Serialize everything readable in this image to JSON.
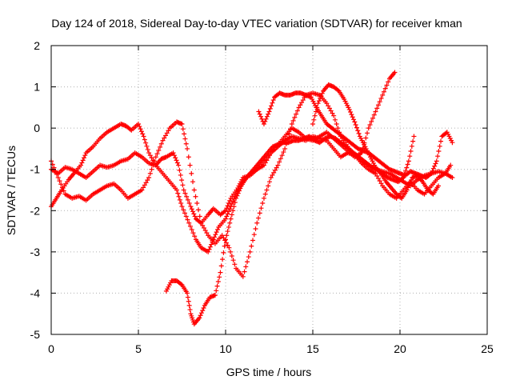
{
  "chart_data": {
    "type": "scatter",
    "title": "Day 124 of 2018, Sidereal Day-to-day VTEC variation (SDTVAR) for receiver kman",
    "xlabel": "GPS time / hours",
    "ylabel": "SDTVAR / TECUs",
    "xlim": [
      0,
      25
    ],
    "ylim": [
      -5,
      2
    ],
    "xticks": [
      "0",
      "5",
      "10",
      "15",
      "20",
      "25"
    ],
    "yticks": [
      "2",
      "1",
      "0",
      "-1",
      "-2",
      "-3",
      "-4",
      "-5"
    ],
    "grid": true,
    "marker": "+",
    "marker_color": "#ff0000",
    "series": [
      {
        "x": [
          0.0,
          0.3,
          0.6,
          1.0,
          1.3,
          1.7,
          2.0,
          2.4,
          2.8,
          3.2,
          3.6,
          4.0,
          4.3,
          4.6,
          5.0,
          5.3,
          5.6,
          6.0,
          6.4,
          6.8,
          7.2,
          7.5,
          7.9,
          8.3,
          8.6,
          9.0,
          9.3,
          9.6,
          10.0,
          10.3,
          10.6,
          11.0,
          11.4,
          11.8,
          12.2,
          12.6,
          13.0,
          13.4,
          13.8,
          14.2,
          14.6,
          15.0,
          15.4,
          15.8,
          16.2,
          16.6,
          17.0,
          17.4,
          17.8,
          18.2,
          18.6,
          19.0,
          19.4,
          19.7
        ],
        "y": [
          -1.9,
          -1.7,
          -1.5,
          -1.25,
          -1.1,
          -0.9,
          -0.6,
          -0.45,
          -0.25,
          -0.1,
          0.0,
          0.1,
          0.05,
          -0.05,
          0.1,
          -0.2,
          -0.6,
          -0.9,
          -1.1,
          -1.3,
          -1.5,
          -1.9,
          -2.3,
          -2.7,
          -2.9,
          -3.0,
          -2.7,
          -2.4,
          -2.2,
          -1.9,
          -1.6,
          -1.3,
          -1.1,
          -1.0,
          -0.9,
          -0.6,
          -0.4,
          -0.2,
          0.0,
          -0.1,
          -0.25,
          -0.3,
          -0.2,
          -0.1,
          -0.25,
          -0.4,
          -0.55,
          -0.7,
          -0.6,
          0.0,
          0.4,
          0.8,
          1.2,
          1.35
        ]
      },
      {
        "x": [
          0.0,
          0.4,
          0.8,
          1.2,
          1.6,
          2.0,
          2.4,
          2.8,
          3.2,
          3.6,
          4.0,
          4.4,
          4.8,
          5.2,
          5.6,
          6.0,
          6.3,
          6.6,
          7.0,
          7.3,
          7.6,
          8.0,
          8.3,
          8.6,
          9.0,
          9.3,
          9.7,
          10.0,
          10.3,
          10.7,
          11.0,
          11.4,
          11.8,
          12.2,
          12.6,
          13.0,
          13.4,
          13.8,
          14.2,
          14.6,
          15.0,
          15.4,
          15.8,
          16.2,
          16.6,
          17.0,
          17.4,
          17.8,
          18.2,
          18.6,
          19.0,
          19.4,
          19.8,
          20.2,
          20.6,
          21.0,
          21.4,
          21.8,
          22.2,
          22.6,
          23.0
        ],
        "y": [
          -1.0,
          -1.1,
          -0.95,
          -1.0,
          -1.1,
          -1.2,
          -1.05,
          -0.9,
          -0.95,
          -0.9,
          -0.8,
          -0.75,
          -0.6,
          -0.7,
          -0.85,
          -0.9,
          -0.75,
          -0.7,
          -0.6,
          -0.9,
          -1.5,
          -1.9,
          -2.2,
          -2.3,
          -2.1,
          -1.95,
          -2.1,
          -2.0,
          -1.7,
          -1.45,
          -1.2,
          -1.15,
          -1.0,
          -0.8,
          -0.6,
          -0.45,
          -0.3,
          -0.2,
          -0.25,
          -0.3,
          -0.2,
          -0.25,
          -0.3,
          -0.5,
          -0.7,
          -0.6,
          -0.65,
          -0.8,
          -0.9,
          -1.0,
          -1.05,
          -1.1,
          -1.2,
          -1.3,
          -1.4,
          -1.25,
          -1.15,
          -1.1,
          -1.05,
          -1.1,
          -1.2
        ]
      },
      {
        "x": [
          0.0,
          0.4,
          0.8,
          1.2,
          1.6,
          2.0,
          2.4,
          2.8,
          3.2,
          3.6,
          4.0,
          4.4,
          4.8,
          5.2,
          5.6,
          6.0,
          6.4,
          6.8,
          7.2,
          7.5,
          7.8,
          8.2,
          8.6,
          9.0,
          9.4,
          9.8,
          10.2,
          10.6,
          11.0,
          11.4,
          11.8,
          12.2,
          12.6,
          13.0,
          13.4,
          13.8,
          14.2,
          14.6,
          15.0,
          15.4,
          15.8,
          16.2,
          16.6,
          17.0,
          17.4,
          17.8,
          18.2,
          18.6,
          19.0,
          19.4,
          19.8,
          20.2,
          20.6,
          21.0,
          21.4,
          21.8,
          22.2,
          22.6,
          22.9
        ],
        "y": [
          -0.8,
          -1.2,
          -1.6,
          -1.7,
          -1.65,
          -1.75,
          -1.6,
          -1.5,
          -1.4,
          -1.35,
          -1.5,
          -1.7,
          -1.6,
          -1.5,
          -1.2,
          -0.7,
          -0.3,
          0.0,
          0.15,
          0.1,
          -0.5,
          -1.5,
          -2.3,
          -2.6,
          -2.8,
          -2.6,
          -2.9,
          -3.4,
          -3.6,
          -3.0,
          -2.3,
          -1.7,
          -1.2,
          -0.9,
          -0.5,
          0.1,
          0.5,
          0.8,
          0.85,
          0.8,
          0.6,
          0.3,
          -0.2,
          -0.45,
          -0.65,
          -0.85,
          -1.0,
          -1.1,
          -1.4,
          -1.6,
          -1.7,
          -1.5,
          -1.3,
          -1.5,
          -1.6,
          -1.4,
          -1.2,
          -1.1,
          -0.9
        ]
      },
      {
        "x": [
          6.6,
          6.9,
          7.2,
          7.5,
          7.8,
          8.0,
          8.2,
          8.5,
          8.8,
          9.1,
          9.4,
          9.7,
          10.0,
          10.3,
          10.6,
          10.9,
          11.2,
          11.5,
          11.8,
          12.1,
          12.4,
          12.7,
          13.0,
          13.3,
          13.6,
          13.9,
          14.2,
          14.5,
          14.8,
          15.1,
          15.4,
          15.7,
          16.0,
          16.3,
          16.6,
          16.9,
          17.2,
          17.5,
          17.8,
          18.1,
          18.4,
          18.7,
          19.0,
          19.3,
          19.6,
          19.9,
          20.2,
          20.5,
          20.8
        ],
        "y": [
          -3.95,
          -3.7,
          -3.7,
          -3.8,
          -4.0,
          -4.5,
          -4.75,
          -4.6,
          -4.3,
          -4.1,
          -4.05,
          -3.5,
          -2.7,
          -2.2,
          -1.7,
          -1.4,
          -1.2,
          -1.05,
          -0.9,
          -0.75,
          -0.6,
          -0.45,
          -0.4,
          -0.35,
          -0.35,
          -0.3,
          -0.3,
          -0.25,
          -0.2,
          -0.3,
          -0.35,
          -0.25,
          -0.2,
          -0.25,
          -0.35,
          -0.45,
          -0.55,
          -0.65,
          -0.75,
          -0.85,
          -0.95,
          -1.0,
          -1.1,
          -1.2,
          -1.25,
          -1.3,
          -1.2,
          -0.8,
          -0.2
        ]
      },
      {
        "x": [
          11.9,
          12.2,
          12.5,
          12.8,
          13.1,
          13.4,
          13.7,
          14.0,
          14.3,
          14.6,
          14.9,
          15.2,
          15.5,
          15.8,
          16.1,
          16.4,
          16.7,
          17.0,
          17.3,
          17.6,
          17.9,
          18.2,
          18.5,
          18.8,
          19.1,
          19.4,
          19.7,
          20.0,
          20.3,
          20.6,
          20.9,
          21.2,
          21.5,
          21.8,
          22.1,
          22.4,
          22.7,
          23.0
        ],
        "y": [
          0.4,
          0.1,
          0.4,
          0.75,
          0.85,
          0.8,
          0.8,
          0.85,
          0.85,
          0.8,
          0.75,
          0.5,
          0.3,
          0.1,
          0.0,
          -0.1,
          -0.2,
          -0.3,
          -0.4,
          -0.5,
          -0.55,
          -0.6,
          -0.7,
          -0.8,
          -0.9,
          -1.0,
          -1.05,
          -1.1,
          -1.15,
          -1.05,
          -1.1,
          -1.15,
          -1.2,
          -1.1,
          -0.8,
          -0.2,
          -0.1,
          -0.35
        ]
      },
      {
        "x": [
          15.0,
          15.3,
          15.6,
          15.9,
          16.2,
          16.5,
          16.8,
          17.1,
          17.4,
          17.7,
          18.0,
          18.3,
          18.6,
          18.9,
          19.2,
          19.5,
          19.8,
          20.1,
          20.4,
          20.7,
          21.0,
          21.3,
          21.6,
          21.9,
          22.2
        ],
        "y": [
          0.1,
          0.6,
          0.9,
          1.05,
          1.0,
          0.9,
          0.7,
          0.45,
          0.15,
          -0.2,
          -0.45,
          -0.7,
          -0.95,
          -1.1,
          -1.3,
          -1.45,
          -1.6,
          -1.7,
          -1.5,
          -1.2,
          -1.15,
          -1.3,
          -1.5,
          -1.6,
          -1.4
        ]
      }
    ]
  }
}
